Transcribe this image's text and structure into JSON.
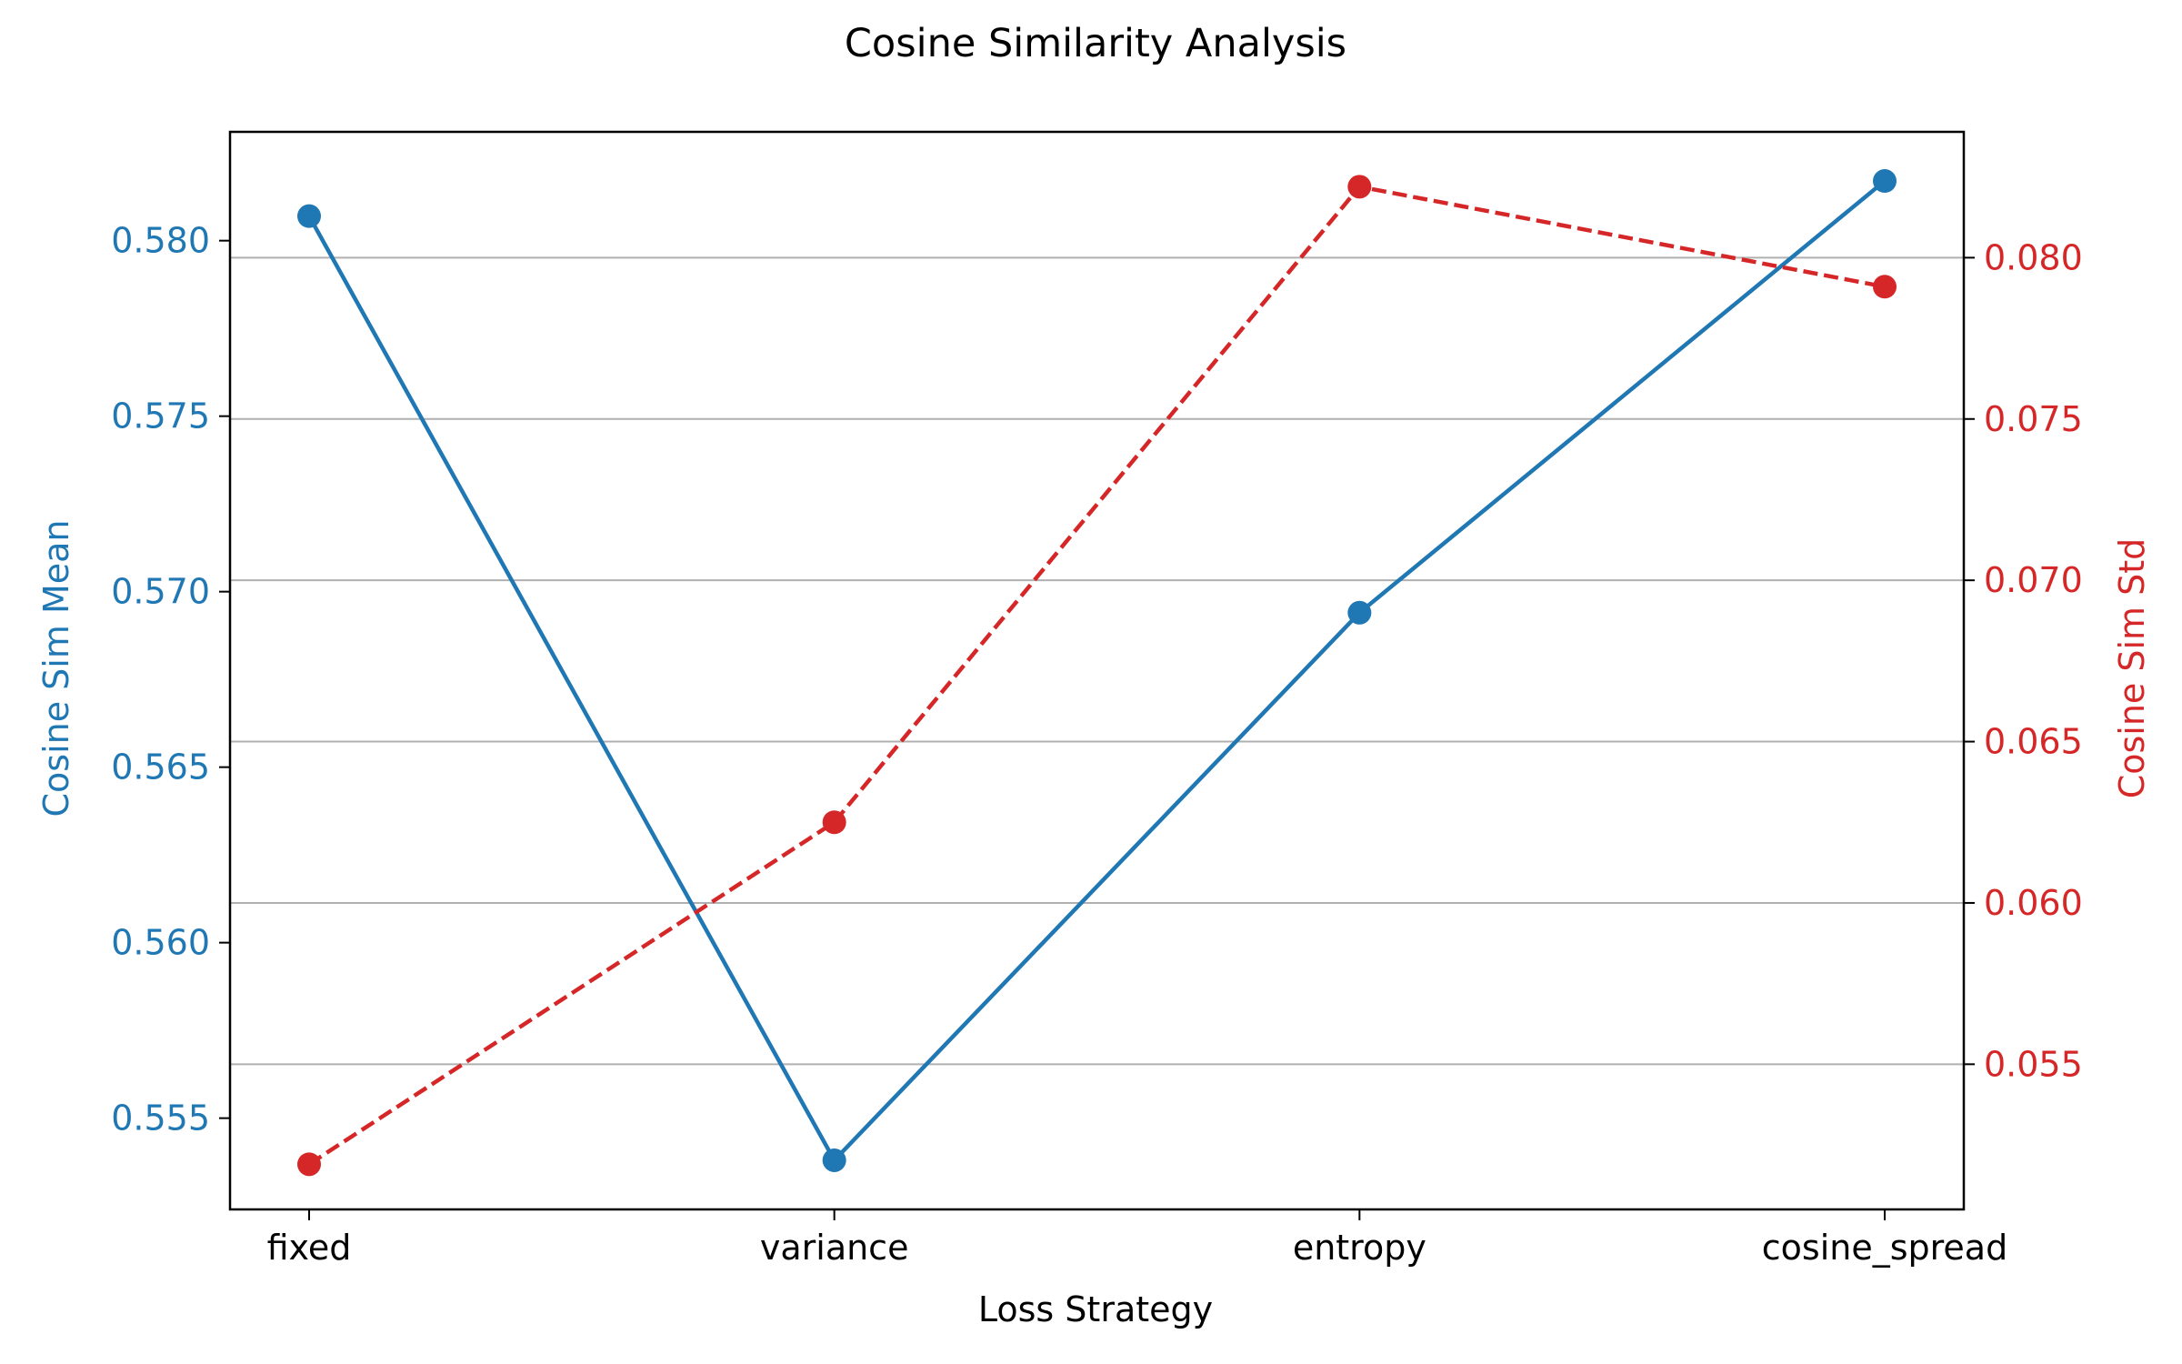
{
  "chart_data": {
    "type": "line",
    "title": "Cosine Similarity Analysis",
    "xlabel": "Loss Strategy",
    "categories": [
      "fixed",
      "variance",
      "entropy",
      "cosine_spread"
    ],
    "y_left": {
      "label": "Cosine Sim Mean",
      "color": "#1f77b4",
      "ticks": [
        "0.555",
        "0.560",
        "0.565",
        "0.570",
        "0.575",
        "0.580"
      ],
      "range": [
        0.5524,
        0.5831
      ]
    },
    "y_right": {
      "label": "Cosine Sim Std",
      "color": "#d62728",
      "ticks": [
        "0.055",
        "0.060",
        "0.065",
        "0.070",
        "0.075",
        "0.080"
      ],
      "range": [
        0.0505,
        0.0839
      ]
    },
    "grid": "horizontal, right axis",
    "series": [
      {
        "axis": "left",
        "color": "#1f77b4",
        "line_style": "solid",
        "marker": "circle",
        "values": [
          0.5807,
          0.5538,
          0.5694,
          0.5817
        ]
      },
      {
        "axis": "right",
        "color": "#d62728",
        "line_style": "dashed",
        "marker": "circle",
        "values": [
          0.0519,
          0.0625,
          0.0822,
          0.0791
        ]
      }
    ]
  }
}
